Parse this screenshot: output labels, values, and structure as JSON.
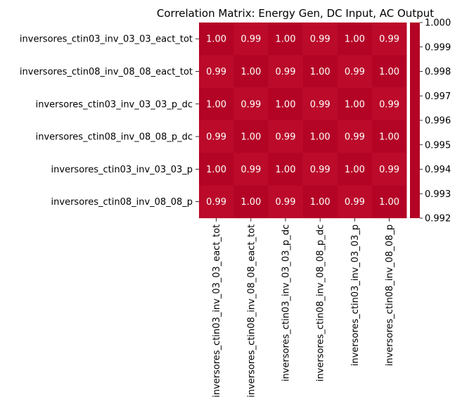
{
  "chart_data": {
    "type": "heatmap",
    "title": "Correlation Matrix: Energy Gen, DC Input, AC Output",
    "rows": [
      "inversores_ctin03_inv_03_03_eact_tot",
      "inversores_ctin08_inv_08_08_eact_tot",
      "inversores_ctin03_inv_03_03_p_dc",
      "inversores_ctin08_inv_08_08_p_dc",
      "inversores_ctin03_inv_03_03_p",
      "inversores_ctin08_inv_08_08_p"
    ],
    "columns": [
      "inversores_ctin03_inv_03_03_eact_tot",
      "inversores_ctin08_inv_08_08_eact_tot",
      "inversores_ctin03_inv_03_03_p_dc",
      "inversores_ctin08_inv_08_08_p_dc",
      "inversores_ctin03_inv_03_03_p",
      "inversores_ctin08_inv_08_08_p"
    ],
    "values": [
      [
        1.0,
        0.99,
        1.0,
        0.99,
        1.0,
        0.99
      ],
      [
        0.99,
        1.0,
        0.99,
        1.0,
        0.99,
        1.0
      ],
      [
        1.0,
        0.99,
        1.0,
        0.99,
        1.0,
        0.99
      ],
      [
        0.99,
        1.0,
        0.99,
        1.0,
        0.99,
        1.0
      ],
      [
        1.0,
        0.99,
        1.0,
        0.99,
        1.0,
        0.99
      ],
      [
        0.99,
        1.0,
        0.99,
        1.0,
        0.99,
        1.0
      ]
    ],
    "cell_labels": [
      [
        "1.00",
        "0.99",
        "1.00",
        "0.99",
        "1.00",
        "0.99"
      ],
      [
        "0.99",
        "1.00",
        "0.99",
        "1.00",
        "0.99",
        "1.00"
      ],
      [
        "1.00",
        "0.99",
        "1.00",
        "0.99",
        "1.00",
        "0.99"
      ],
      [
        "0.99",
        "1.00",
        "0.99",
        "1.00",
        "0.99",
        "1.00"
      ],
      [
        "1.00",
        "0.99",
        "1.00",
        "0.99",
        "1.00",
        "0.99"
      ],
      [
        "0.99",
        "1.00",
        "0.99",
        "1.00",
        "0.99",
        "1.00"
      ]
    ],
    "colorbar": {
      "range": [
        0.992,
        1.0
      ],
      "ticks": [
        "1.000",
        "0.999",
        "0.998",
        "0.997",
        "0.996",
        "0.995",
        "0.994",
        "0.993",
        "0.992"
      ],
      "colormap": "coolwarm (upper end)"
    },
    "colors": {
      "cell_high": "#b40426",
      "cell_low": "#bb0a2a",
      "cell_text": "#ffffff"
    }
  }
}
